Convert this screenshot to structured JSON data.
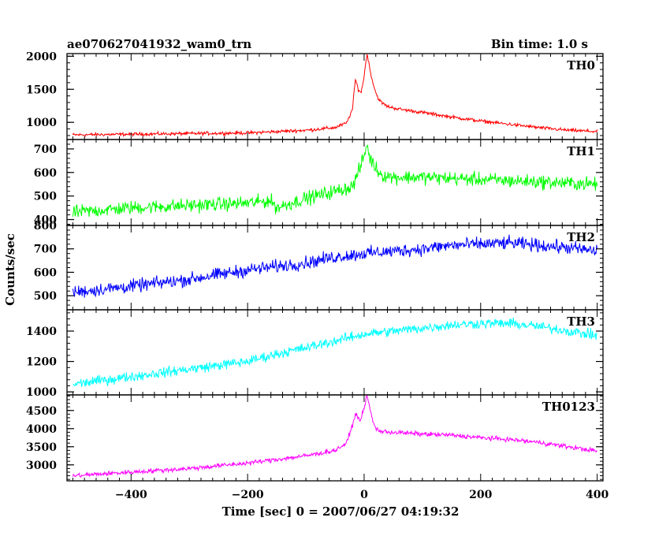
{
  "header": {
    "title": "ae070627041932_wam0_trn",
    "bin_time": "Bin time: 1.0 s"
  },
  "chart_data": {
    "type": "line",
    "xlabel": "Time [sec] 0 = 2007/06/27 04:19:32",
    "ylabel": "Counts/sec",
    "xlim": [
      -510,
      410
    ],
    "x_ticks": [
      -400,
      -200,
      0,
      200,
      400
    ],
    "x_tick_labels": [
      "−400",
      "−200",
      "0",
      "200",
      "400"
    ],
    "grid": false,
    "panels": [
      {
        "name": "TH0",
        "color": "#ff0000",
        "ylim": [
          740,
          2040
        ],
        "ticks": [
          1000,
          1500,
          2000
        ],
        "x": [
          -500,
          -400,
          -300,
          -200,
          -100,
          -50,
          -30,
          -20,
          -15,
          -10,
          -5,
          0,
          5,
          10,
          15,
          20,
          25,
          30,
          40,
          60,
          100,
          150,
          200,
          250,
          300,
          350,
          400
        ],
        "y": [
          810,
          820,
          830,
          840,
          880,
          920,
          990,
          1200,
          1650,
          1500,
          1450,
          1700,
          2050,
          1800,
          1600,
          1450,
          1350,
          1300,
          1240,
          1200,
          1150,
          1080,
          1020,
          970,
          920,
          880,
          860
        ],
        "noise": 22
      },
      {
        "name": "TH1",
        "color": "#00ff00",
        "ylim": [
          375,
          740
        ],
        "ticks": [
          400,
          500,
          600,
          700
        ],
        "x": [
          -500,
          -400,
          -300,
          -200,
          -160,
          -150,
          -100,
          -50,
          -20,
          -10,
          0,
          5,
          10,
          20,
          30,
          50,
          100,
          150,
          200,
          250,
          300,
          350,
          400
        ],
        "y": [
          430,
          450,
          460,
          470,
          480,
          450,
          490,
          520,
          540,
          600,
          670,
          720,
          660,
          620,
          590,
          580,
          580,
          575,
          570,
          565,
          560,
          555,
          550
        ],
        "noise": 25
      },
      {
        "name": "TH2",
        "color": "#0000ff",
        "ylim": [
          440,
          800
        ],
        "ticks": [
          500,
          600,
          700,
          800
        ],
        "x": [
          -500,
          -400,
          -300,
          -200,
          -100,
          -50,
          0,
          100,
          150,
          200,
          250,
          300,
          350,
          400
        ],
        "y": [
          515,
          540,
          570,
          610,
          640,
          665,
          680,
          700,
          715,
          720,
          725,
          715,
          705,
          690
        ],
        "noise": 24
      },
      {
        "name": "TH3",
        "color": "#00ffff",
        "ylim": [
          980,
          1540
        ],
        "ticks": [
          1000,
          1200,
          1400
        ],
        "x": [
          -500,
          -400,
          -300,
          -200,
          -150,
          -100,
          0,
          100,
          150,
          200,
          250,
          300,
          350,
          400
        ],
        "y": [
          1050,
          1100,
          1150,
          1200,
          1250,
          1290,
          1380,
          1420,
          1440,
          1450,
          1450,
          1430,
          1400,
          1370
        ],
        "noise": 28
      },
      {
        "name": "TH0123",
        "color": "#ff00ff",
        "ylim": [
          2560,
          4930
        ],
        "ticks": [
          3000,
          3500,
          4000,
          4500
        ],
        "x": [
          -500,
          -400,
          -300,
          -200,
          -100,
          -50,
          -30,
          -20,
          -15,
          -10,
          -5,
          0,
          5,
          10,
          15,
          20,
          30,
          50,
          100,
          150,
          200,
          250,
          300,
          350,
          400
        ],
        "y": [
          2700,
          2800,
          2900,
          3050,
          3250,
          3400,
          3600,
          4100,
          4400,
          4300,
          4250,
          4600,
          4900,
          4550,
          4200,
          4000,
          3920,
          3900,
          3850,
          3820,
          3750,
          3700,
          3620,
          3500,
          3380
        ],
        "noise": 55
      }
    ]
  }
}
